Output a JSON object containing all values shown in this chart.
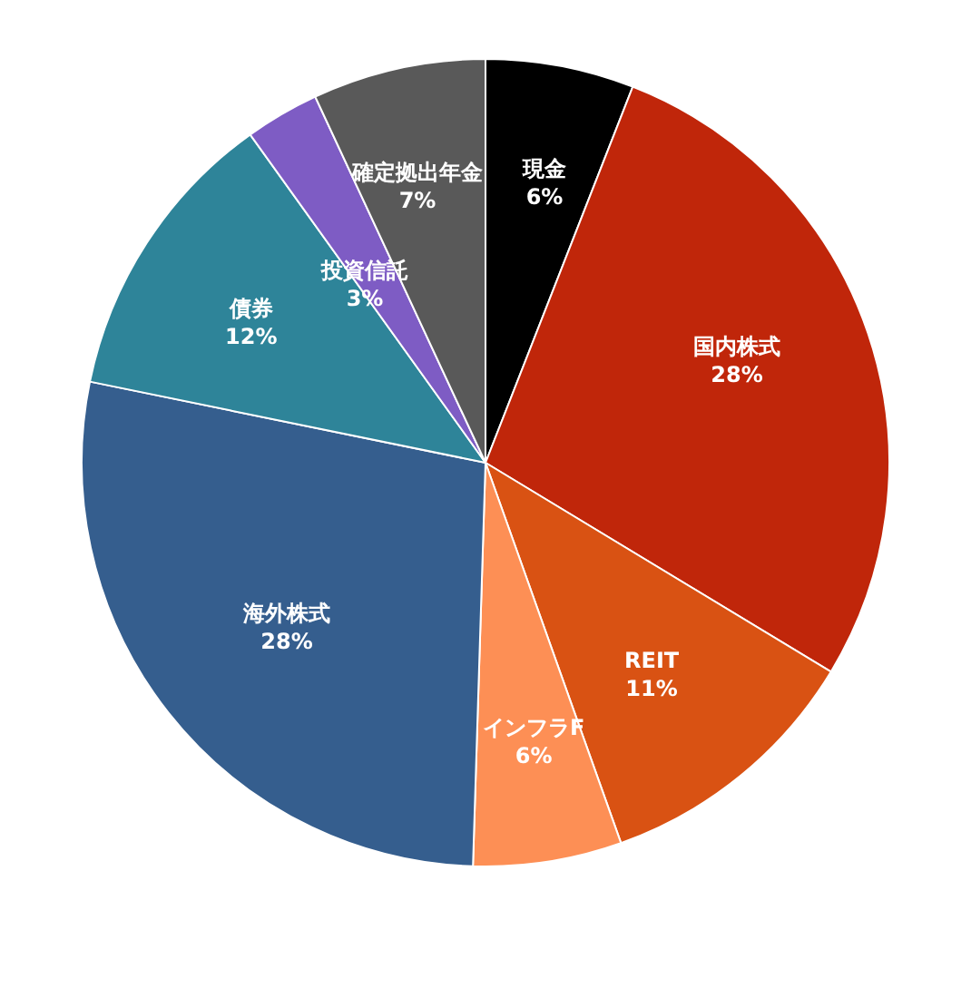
{
  "chart_data": {
    "type": "pie",
    "categories": [
      "現金",
      "国内株式",
      "REIT",
      "インフラF",
      "海外株式",
      "債券",
      "投資信託",
      "確定拠出年金"
    ],
    "values": [
      6,
      28,
      11,
      6,
      28,
      12,
      3,
      7
    ],
    "value_labels": [
      "6%",
      "28%",
      "11%",
      "6%",
      "28%",
      "12%",
      "3%",
      "7%"
    ],
    "colors": [
      "#000000",
      "#c0260a",
      "#d95213",
      "#fd8f55",
      "#355e8e",
      "#2e8499",
      "#7e5cc4",
      "#595959"
    ],
    "legend": false
  }
}
